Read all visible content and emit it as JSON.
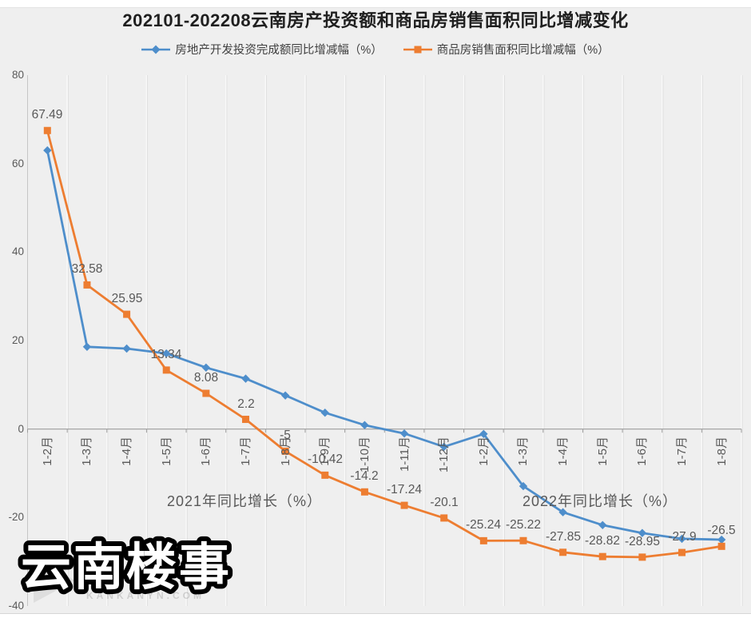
{
  "title": "202101-202208云南房产投资额和商品房销售面积同比增减变化",
  "legend": {
    "investment_label": "房地产开发投资完成额同比增减幅（%）",
    "sales_label": "商品房销售面积同比增减幅（%）"
  },
  "annotations": {
    "left": "2021年同比增长（%）",
    "right": "2022年同比增长（%）"
  },
  "watermark": {
    "main": "云南楼事",
    "sub": "KANKANYN.COM"
  },
  "colors": {
    "investment_blue": "#4e8ecb",
    "sales_orange": "#ed7d31",
    "panel_background": "#efefef",
    "gridline_light": "#fafafa",
    "gridline_shade": "#dcdcdc",
    "axis_line": "#9d9d9d",
    "label_gray": "#595959",
    "title_color": "#1f1f1f"
  },
  "chart_data": {
    "type": "line",
    "title": "202101-202208云南房产投资额和商品房销售面积同比增减变化",
    "categories": [
      "1-2月",
      "1-3月",
      "1-4月",
      "1-5月",
      "1-6月",
      "1-7月",
      "1-8月",
      "1-9月",
      "1-10月",
      "1-11月",
      "1-12月",
      "1-2月",
      "1-3月",
      "1-4月",
      "1-5月",
      "1-6月",
      "1-7月",
      "1-8月"
    ],
    "category_groups": [
      {
        "label": "2021年同比增长（%）",
        "from_index": 0,
        "to_index": 10
      },
      {
        "label": "2022年同比增长（%）",
        "from_index": 11,
        "to_index": 17
      }
    ],
    "series": [
      {
        "name": "房地产开发投资完成额同比增减幅（%）",
        "color": "#4e8ecb",
        "marker": "diamond",
        "labels_shown": false,
        "values": [
          63.0,
          18.6,
          18.2,
          17.1,
          13.9,
          11.4,
          7.6,
          3.7,
          0.9,
          -1.0,
          -4.0,
          -1.1,
          -12.9,
          -18.8,
          -21.7,
          -23.5,
          -24.8,
          -25.0
        ]
      },
      {
        "name": "商品房销售面积同比增减幅（%）",
        "color": "#ed7d31",
        "marker": "square",
        "labels_shown": true,
        "values": [
          67.49,
          32.58,
          25.95,
          13.34,
          8.08,
          2.2,
          -5,
          -10.42,
          -14.2,
          -17.24,
          -20.1,
          -25.24,
          -25.22,
          -27.85,
          -28.82,
          -28.95,
          -27.9,
          -26.5
        ],
        "labels": [
          "67.49",
          "32.58",
          "25.95",
          "13.34",
          "8.08",
          "2.2",
          "-5",
          "-10.42",
          "-14.2",
          "-17.24",
          "-20.1",
          "-25.24",
          "-25.22",
          "-27.85",
          "-28.82",
          "-28.95",
          "-27.9",
          "-26.5"
        ]
      }
    ],
    "ylim": [
      -40,
      80
    ],
    "yticks": [
      80,
      60,
      40,
      20,
      0,
      -20,
      -40
    ],
    "grid": "vertical-only",
    "legend_position": "top"
  }
}
